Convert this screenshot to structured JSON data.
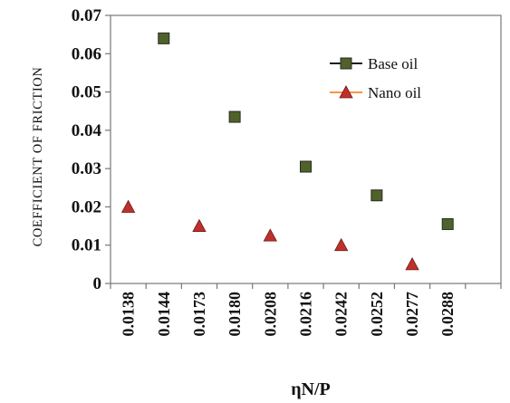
{
  "chart_data": {
    "type": "scatter",
    "title": "",
    "xlabel": "ηN/P",
    "ylabel": "COEFFICIENT OF FRICTION",
    "ylim": [
      0,
      0.07
    ],
    "y_ticks": [
      "0",
      "0.01",
      "0.02",
      "0.03",
      "0.04",
      "0.05",
      "0.06",
      "0.07"
    ],
    "categories": [
      "0.0138",
      "0.0144",
      "0.0173",
      "0.0180",
      "0.0208",
      "0.0216",
      "0.0242",
      "0.0252",
      "0.0277",
      "0.0288"
    ],
    "grid": false,
    "legend_position": "top-right",
    "series": [
      {
        "name": "Base oil",
        "marker": "square",
        "color": "#4f6228",
        "line_color": "#1f1f1f",
        "points": [
          {
            "x": "0.0144",
            "y": 0.064
          },
          {
            "x": "0.0180",
            "y": 0.0435
          },
          {
            "x": "0.0216",
            "y": 0.0305
          },
          {
            "x": "0.0252",
            "y": 0.023
          },
          {
            "x": "0.0288",
            "y": 0.0155
          }
        ]
      },
      {
        "name": "Nano oil",
        "marker": "triangle",
        "color": "#c0302a",
        "line_color": "#f79646",
        "points": [
          {
            "x": "0.0138",
            "y": 0.02
          },
          {
            "x": "0.0173",
            "y": 0.015
          },
          {
            "x": "0.0208",
            "y": 0.0125
          },
          {
            "x": "0.0242",
            "y": 0.01
          },
          {
            "x": "0.0277",
            "y": 0.005
          }
        ]
      }
    ]
  }
}
